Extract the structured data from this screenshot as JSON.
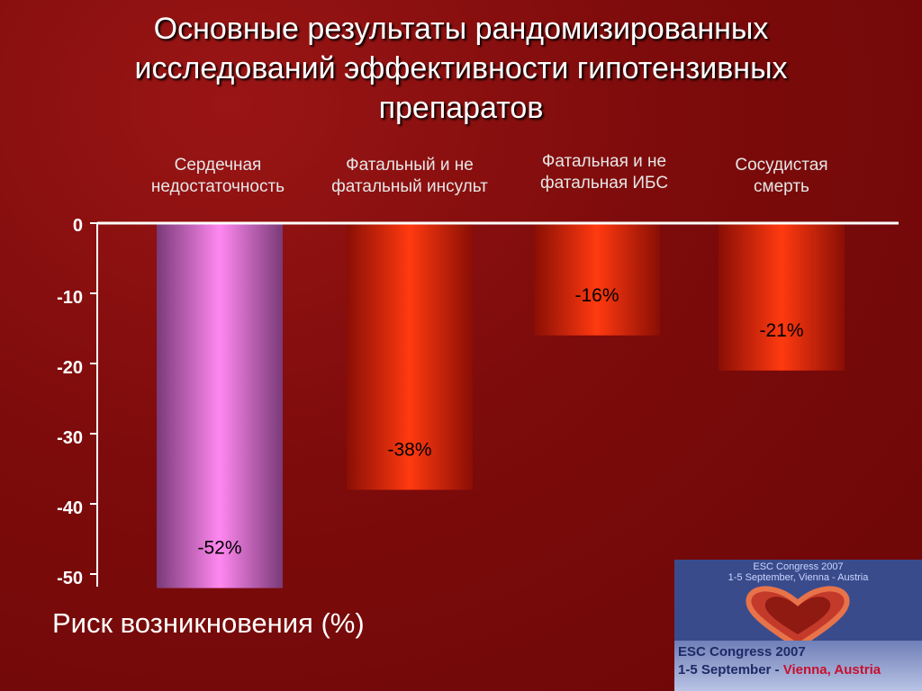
{
  "title_lines": [
    "Основные результаты рандомизированных",
    "исследований эффективности гипотензивных",
    "препаратов"
  ],
  "colors": {
    "background": "#7d0b0b",
    "bar_purple_center": "#ff88f0",
    "bar_purple_edge": "#7a3a78",
    "bar_red_center": "#ff3a10",
    "bar_red_edge": "#8a0e05",
    "axis": "#ffffff"
  },
  "chart_data": {
    "type": "bar",
    "orientation": "vertical-negative",
    "categories": [
      "Сердечная недостаточность",
      "Фатальный и не фатальный инсульт",
      "Фатальная и не фатальная ИБС",
      "Сосудистая смерть"
    ],
    "category_label_lines": [
      [
        "Сердечная",
        "недостаточность"
      ],
      [
        "Фатальный и не",
        "фатальный инсульт"
      ],
      [
        "Фатальная и не",
        "фатальная ИБС"
      ],
      [
        "Сосудистая",
        "смерть"
      ]
    ],
    "values": [
      -52,
      -38,
      -16,
      -21
    ],
    "data_labels": [
      "-52%",
      "-38%",
      "-16%",
      "-21%"
    ],
    "bar_colors": [
      "purple",
      "red",
      "red",
      "red"
    ],
    "ylabel": "Риск возникновения (%)",
    "yticks": [
      "0",
      "-10",
      "-20",
      "-30",
      "-40",
      "-50"
    ],
    "ylim": [
      -52,
      0
    ],
    "xaxis_position": "top",
    "grid": false
  },
  "badge": {
    "top_line1": "ESC Congress 2007",
    "top_line2": "1-5 September, Vienna - Austria",
    "title": "ESC Congress 2007",
    "date": "1-5 September - ",
    "city": "Vienna, Austria",
    "heart_icon": "heart-logo"
  }
}
